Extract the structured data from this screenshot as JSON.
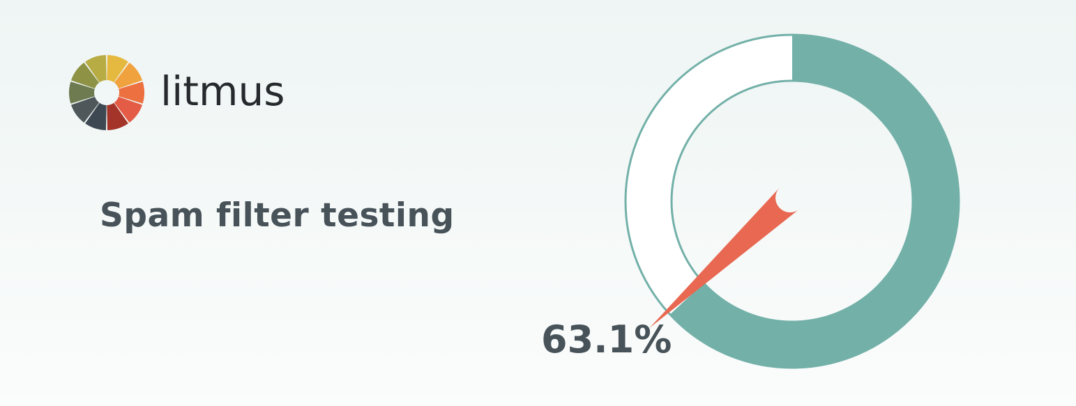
{
  "brand": {
    "name": "litmus",
    "logo_icon": "color-wheel-icon",
    "logo_colors": [
      "#e5b93f",
      "#f0a23e",
      "#ec7040",
      "#e45c45",
      "#a43429",
      "#3d4852",
      "#4f575a",
      "#6e7b51",
      "#8e9245",
      "#b7ab44"
    ]
  },
  "headline": "Spam filter testing",
  "chart_data": {
    "type": "gauge",
    "value_percent": 63.1,
    "label": "63.1%",
    "colors": {
      "filled": "#72b0a8",
      "empty": "#ffffff",
      "outline": "#72b0a8",
      "needle": "#e86851"
    }
  }
}
